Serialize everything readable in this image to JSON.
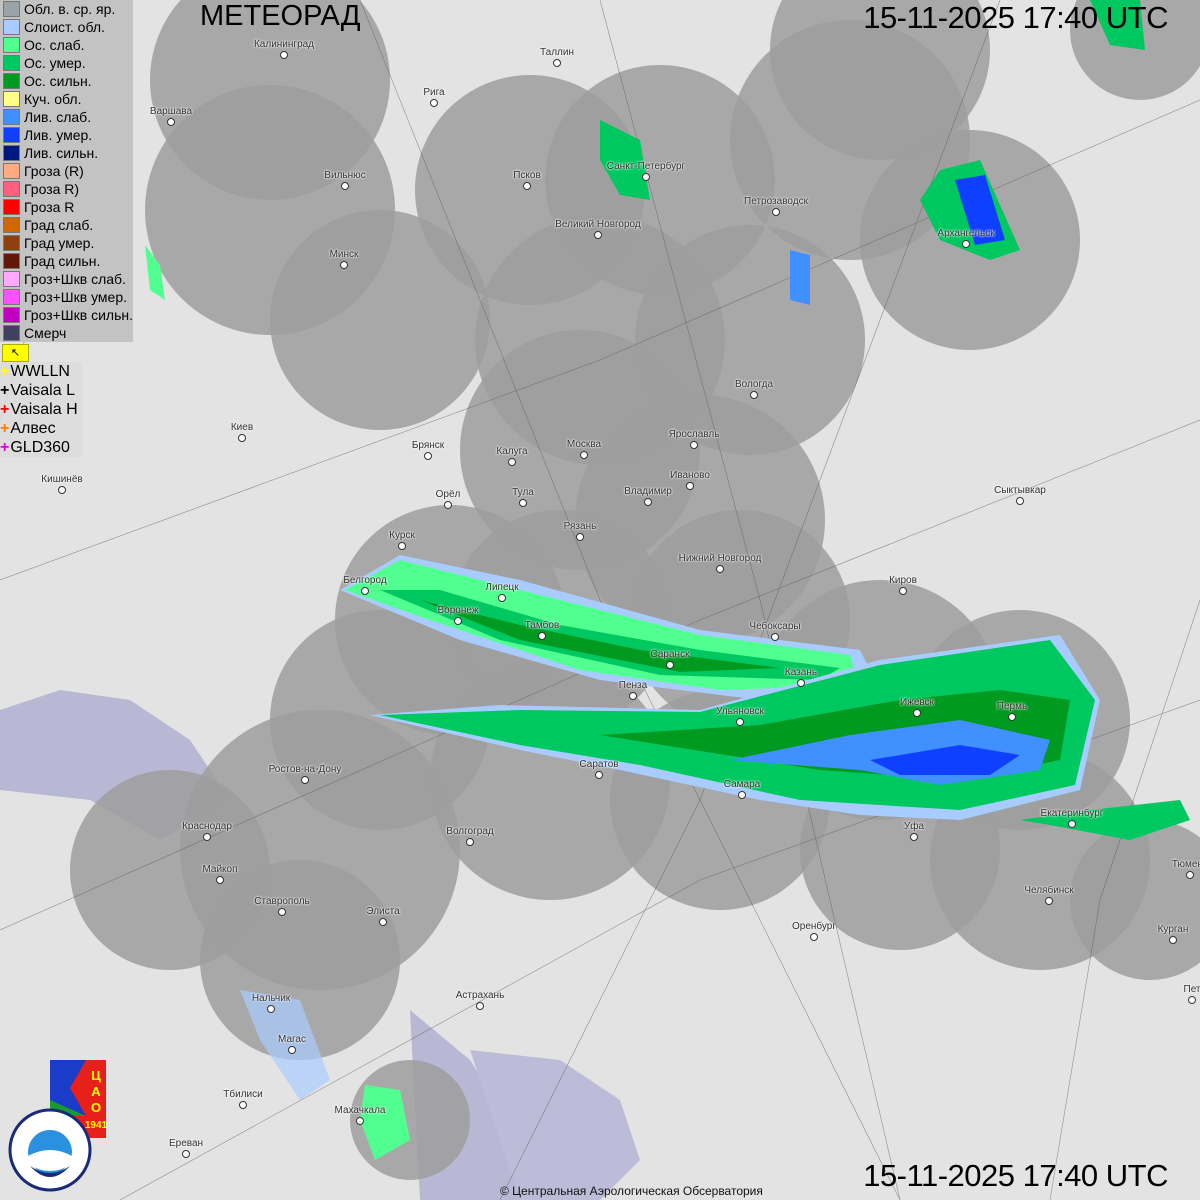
{
  "title": "МЕТЕОРАД",
  "timestamp": "15-11-2025  17:40 UTC",
  "copyright": "© Центральная Аэрологическая Обсерватория",
  "legend": [
    {
      "label": "Обл. в. ср. яр.",
      "color": "#9aa4a8"
    },
    {
      "label": "Слоист. обл.",
      "color": "#a8ccff"
    },
    {
      "label": "Ос. слаб.",
      "color": "#50ff90"
    },
    {
      "label": "Ос. умер.",
      "color": "#00c860"
    },
    {
      "label": "Ос. сильн.",
      "color": "#009a20"
    },
    {
      "label": "Куч. обл.",
      "color": "#ffff88"
    },
    {
      "label": "Лив. слаб.",
      "color": "#4090ff"
    },
    {
      "label": "Лив. умер.",
      "color": "#1040ff"
    },
    {
      "label": "Лив. сильн.",
      "color": "#001880"
    },
    {
      "label": "Гроза (R)",
      "color": "#ffaa80"
    },
    {
      "label": "Гроза R)",
      "color": "#ff6080"
    },
    {
      "label": "Гроза R",
      "color": "#ff0000"
    },
    {
      "label": "Град слаб.",
      "color": "#d06800"
    },
    {
      "label": "Град умер.",
      "color": "#904010"
    },
    {
      "label": "Град сильн.",
      "color": "#601808"
    },
    {
      "label": "Гроз+Шкв слаб.",
      "color": "#ffaaff"
    },
    {
      "label": "Гроз+Шкв умер.",
      "color": "#ff50ff"
    },
    {
      "label": "Гроз+Шкв сильн.",
      "color": "#c000c0"
    },
    {
      "label": "Смерч",
      "color": "#404060"
    }
  ],
  "lightning": [
    {
      "label": "WWLLN",
      "color": "#ffff00"
    },
    {
      "label": "Vaisala L",
      "color": "#000000"
    },
    {
      "label": "Vaisala H",
      "color": "#ff0000"
    },
    {
      "label": "Алвес",
      "color": "#ff8000"
    },
    {
      "label": "GLD360",
      "color": "#e000e0"
    }
  ],
  "cities": [
    "Калининград",
    "Таллин",
    "Рига",
    "Варшава",
    "Вильнюс",
    "Псков",
    "Санкт-Петербург",
    "Петрозаводск",
    "Великий Новгород",
    "Архангельск",
    "Минск",
    "Вологда",
    "Киев",
    "Брянск",
    "Калуга",
    "Москва",
    "Ярославль",
    "Иваново",
    "Кишинёв",
    "Сыктывкар",
    "Орёл",
    "Тула",
    "Владимир",
    "Рязань",
    "Курск",
    "Нижний Новгород",
    "Киров",
    "Белгород",
    "Липецк",
    "Воронеж",
    "Тамбов",
    "Чебоксары",
    "Саранск",
    "Казань",
    "Пенза",
    "Ижевск",
    "Ульяновск",
    "Пермь",
    "Саратов",
    "Ростов-на-Дону",
    "Самара",
    "Екатеринбург",
    "Уфа",
    "Краснодар",
    "Волгоград",
    "Майкоп",
    "Тюмень",
    "Челябинск",
    "Ставрополь",
    "Элиста",
    "Оренбург",
    "Курган",
    "Астрахань",
    "Нальчик",
    "Магас",
    "Тбилиси",
    "Махачкала",
    "Ереван",
    "Пет"
  ],
  "logos": {
    "cao": "ЦАО 1941",
    "roshydromet": "РОСГИДРОМЕТ ROSHYDROMET"
  }
}
